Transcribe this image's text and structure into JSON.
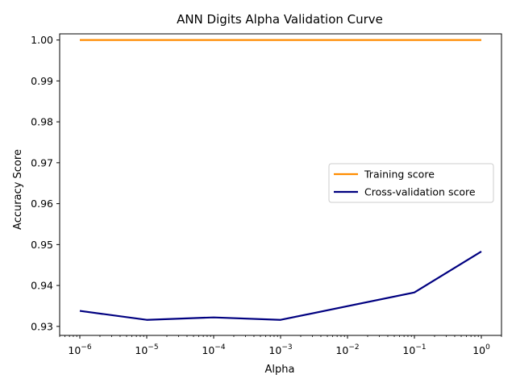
{
  "chart_data": {
    "type": "line",
    "title": "ANN Digits Alpha Validation Curve",
    "xlabel": "Alpha",
    "ylabel": "Accuracy Score",
    "xscale": "log",
    "xlim": [
      5e-07,
      2
    ],
    "ylim": [
      0.9278,
      1.0015
    ],
    "grid": false,
    "legend_position": "center-right",
    "x": [
      1e-06,
      1e-05,
      0.0001,
      0.001,
      0.1,
      1
    ],
    "x_tick_labels": [
      {
        "value": 1e-06,
        "base": "10",
        "exp": "−6"
      },
      {
        "value": 1e-05,
        "base": "10",
        "exp": "−5"
      },
      {
        "value": 0.0001,
        "base": "10",
        "exp": "−4"
      },
      {
        "value": 0.001,
        "base": "10",
        "exp": "−3"
      },
      {
        "value": 0.01,
        "base": "10",
        "exp": "−2"
      },
      {
        "value": 0.1,
        "base": "10",
        "exp": "−1"
      },
      {
        "value": 1,
        "base": "10",
        "exp": "0"
      }
    ],
    "y_ticks": [
      0.93,
      0.94,
      0.95,
      0.96,
      0.97,
      0.98,
      0.99,
      1.0
    ],
    "y_tick_labels": [
      "0.93",
      "0.94",
      "0.95",
      "0.96",
      "0.97",
      "0.98",
      "0.99",
      "1.00"
    ],
    "series": [
      {
        "name": "Training score",
        "color": "#ff8c00",
        "values": [
          1.0,
          1.0,
          1.0,
          1.0,
          1.0,
          1.0
        ]
      },
      {
        "name": "Cross-validation score",
        "color": "#000080",
        "values": [
          0.9338,
          0.9316,
          0.9322,
          0.9316,
          0.9383,
          0.9483
        ]
      }
    ]
  }
}
